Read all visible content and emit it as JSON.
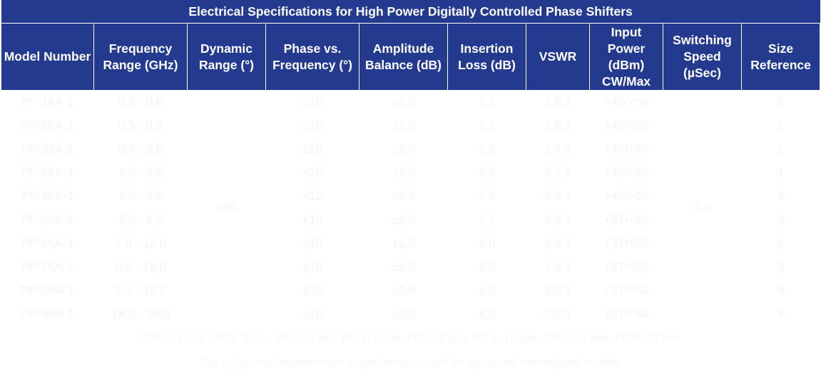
{
  "title": "Electrical Specifications for High Power Digitally Controlled Phase Shifters",
  "headers": [
    "Model Number",
    "Frequency Range (GHz)",
    "Dynamic Range (°)",
    "Phase vs. Frequency (°)",
    "Amplitude Balance (dB)",
    "Insertion Loss (dB)",
    "VSWR",
    "Input Power (dBm) CW/Max",
    "Switching Speed (µSec)",
    "Size Reference"
  ],
  "rows": [
    {
      "model": "PP-16A-1",
      "freq": "0.2 - 0.6",
      "phase": "±10",
      "amp": "±1.0",
      "loss": "1.1",
      "vswr": "1.6:1",
      "power": "+40/+50",
      "size": "5"
    },
    {
      "model": "PP-26A-1",
      "freq": "0.5 - 0.8",
      "phase": "±10",
      "amp": "±1.0",
      "loss": "1.1",
      "vswr": "1.6:1",
      "power": "+40/+50",
      "size": "1"
    },
    {
      "model": "PP-36A-1",
      "freq": "0.8 - 2.0",
      "phase": "±10",
      "amp": "±1.0",
      "loss": "1.3",
      "vswr": "1.7:1",
      "power": "+40/+50",
      "size": "1"
    },
    {
      "model": "PP-66A-1",
      "freq": "1.0 - 3.0",
      "phase": "±10",
      "amp": "±1.0",
      "loss": "1.3",
      "vswr": "1.7:1",
      "power": "+40/+50",
      "size": "1"
    },
    {
      "model": "PP-46A-1",
      "freq": "1.0 - 4.0",
      "phase": "±12",
      "amp": "±2.5",
      "loss": "1.8",
      "vswr": "1.8:1",
      "power": "+40/+50",
      "size": "6"
    },
    {
      "model": "PP-56A-1",
      "freq": "2.0 - 6.0",
      "phase": "±10",
      "amp": "±1.0",
      "loss": "1.1",
      "vswr": "1.8:1",
      "power": "+37/+50",
      "size": "2"
    },
    {
      "model": "PP-66A-1",
      "freq": "4.0 - 12.0",
      "phase": "±10",
      "amp": "±1.0",
      "loss": "2.0",
      "vswr": "1.8:1",
      "power": "+37/+50",
      "size": "2"
    },
    {
      "model": "PP-76A-1",
      "freq": "6.0 - 18.0",
      "phase": "±10",
      "amp": "±1.0",
      "loss": "2.0",
      "vswr": "1.9:1",
      "power": "+37/+50",
      "size": "3"
    },
    {
      "model": "PP-86A-1",
      "freq": "2.0 - 18.0",
      "phase": "±20",
      "amp": "±3.0",
      "loss": "4.0",
      "vswr": "2.0:1",
      "power": "+37/+50",
      "size": "4"
    },
    {
      "model": "PP-96A-1",
      "freq": "18.0 - 26.0",
      "phase": "±10",
      "amp": "±2.0",
      "loss": "4.0",
      "vswr": "2.0:1",
      "power": "+37/+50",
      "size": "5"
    }
  ],
  "dynamic_range": "360",
  "switching_speed": "1.0",
  "notes": {
    "line1": "*PP-1: 5 bits, PP-2: 6 bits, PP-3: 7 bits, PP-4: 8 bits, PP-5: 9 bits, PP-6: 10 bits, PP-7: 11 bits, PP-8: 12 bits",
    "line2": "For substantial improvement in performance, ask for optimized narrowband models"
  }
}
